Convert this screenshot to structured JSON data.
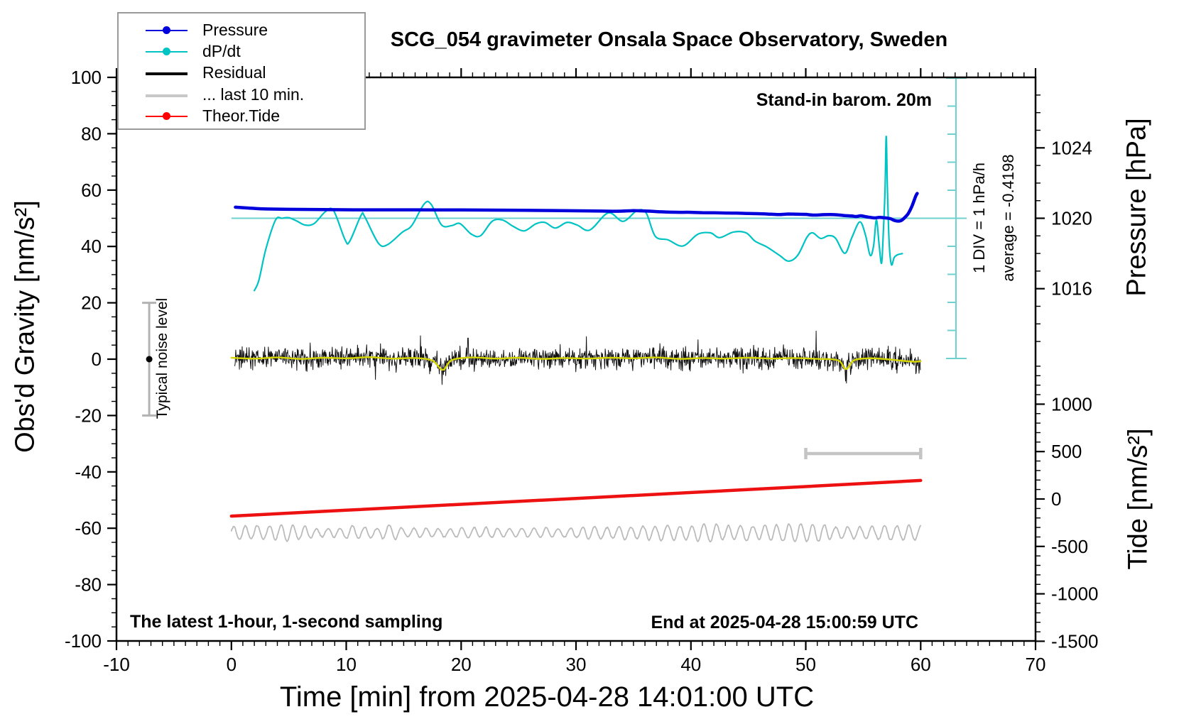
{
  "title": "SCG_054 gravimeter Onsala Space Observatory, Sweden",
  "legend": {
    "items": [
      {
        "label": "Pressure",
        "color": "#0000dd",
        "marker": true,
        "thick": false
      },
      {
        "label": "dP/dt",
        "color": "#00c3c3",
        "marker": true,
        "thick": false
      },
      {
        "label": "Residual",
        "color": "#000000",
        "marker": false,
        "thick": true
      },
      {
        "label": "... last 10 min.",
        "color": "#c8c8c8",
        "marker": false,
        "thick": true
      },
      {
        "label": "Theor.Tide",
        "color": "#ff0000",
        "marker": true,
        "thick": false
      }
    ]
  },
  "annotations": {
    "stand_in": "Stand-in barom. 20m",
    "div_scale": "1 DIV = 1 hPa/h",
    "average": "average = -0.4198",
    "noise_level": "Typical noise level",
    "latest": "The latest 1-hour, 1-second sampling",
    "end_at": "End at 2025-04-28 15:00:59 UTC"
  },
  "chart_data": {
    "type": "line",
    "title": "SCG_054 gravimeter Onsala Space Observatory, Sweden",
    "grid": false,
    "legend_position": "top-left",
    "axes": {
      "x": {
        "label": "Time [min] from 2025-04-28 14:01:00 UTC",
        "range": [
          -10,
          70
        ],
        "major_ticks": [
          -10,
          0,
          10,
          20,
          30,
          40,
          50,
          60,
          70
        ],
        "minor_step": 1
      },
      "y_left": {
        "label": "Obs'd Gravity [nm/s²]",
        "range": [
          -100,
          100
        ],
        "major_ticks": [
          100,
          80,
          60,
          40,
          20,
          0,
          -20,
          -40,
          -60,
          -80,
          -100
        ],
        "minor_step": 5
      },
      "y_right_pressure": {
        "label": "Pressure [hPa]",
        "major_ticks": [
          1024,
          1020,
          1016
        ],
        "minor_step": 1,
        "minor_range": [
          1013,
          1027
        ],
        "anchor": {
          "pressure_hpa": 1020,
          "gravity_axis_value": 50
        }
      },
      "y_right_tide": {
        "label": "Tide [nm/s²]",
        "major_ticks": [
          1000,
          500,
          0,
          -500,
          -1000,
          -1500
        ],
        "minor_step": 100,
        "minor_range": [
          -1500,
          1400
        ]
      }
    },
    "dpdt_scale_bar": {
      "divisions": 10,
      "div_value": "1 hPa/h",
      "center_value_hpa_per_h": 0,
      "t_position_min": 63.1,
      "label": "1 DIV = 1 hPa/h",
      "average_hpa_per_h": -0.4198,
      "color": "#6fd0d0"
    },
    "reference_line": {
      "pressure_hpa": 1020,
      "t_from": 0,
      "t_to": 64,
      "color": "#6fd0d0"
    },
    "series": [
      {
        "name": "Pressure",
        "unit": "hPa",
        "color": "#0000dd",
        "width": 4.5,
        "smooth": true,
        "points": [
          [
            0.35,
            1020.63
          ],
          [
            1.5,
            1020.58
          ],
          [
            3,
            1020.53
          ],
          [
            5,
            1020.51
          ],
          [
            8,
            1020.49
          ],
          [
            12,
            1020.48
          ],
          [
            16,
            1020.48
          ],
          [
            20,
            1020.47
          ],
          [
            24,
            1020.46
          ],
          [
            28,
            1020.44
          ],
          [
            31,
            1020.42
          ],
          [
            33.5,
            1020.4
          ],
          [
            35,
            1020.43
          ],
          [
            36,
            1020.41
          ],
          [
            37,
            1020.38
          ],
          [
            38,
            1020.35
          ],
          [
            39,
            1020.34
          ],
          [
            40,
            1020.34
          ],
          [
            41,
            1020.32
          ],
          [
            42,
            1020.31
          ],
          [
            43,
            1020.3
          ],
          [
            44,
            1020.29
          ],
          [
            45,
            1020.27
          ],
          [
            46,
            1020.26
          ],
          [
            47,
            1020.23
          ],
          [
            47.7,
            1020.21
          ],
          [
            48.5,
            1020.24
          ],
          [
            49.2,
            1020.23
          ],
          [
            50,
            1020.22
          ],
          [
            50.7,
            1020.18
          ],
          [
            51.4,
            1020.2
          ],
          [
            52.1,
            1020.21
          ],
          [
            52.8,
            1020.19
          ],
          [
            53.4,
            1020.15
          ],
          [
            54,
            1020.13
          ],
          [
            54.4,
            1020.1
          ],
          [
            54.8,
            1020.14
          ],
          [
            55.3,
            1020.08
          ],
          [
            55.7,
            1020.04
          ],
          [
            56,
            1020.02
          ],
          [
            56.4,
            1020.05
          ],
          [
            56.8,
            1020.03
          ],
          [
            57.1,
            1020.01
          ],
          [
            57.4,
            1019.97
          ],
          [
            57.7,
            1019.88
          ],
          [
            58,
            1019.84
          ],
          [
            58.3,
            1019.87
          ],
          [
            58.6,
            1020.03
          ],
          [
            58.9,
            1020.25
          ],
          [
            59.2,
            1020.62
          ],
          [
            59.45,
            1021.05
          ],
          [
            59.6,
            1021.3
          ],
          [
            59.7,
            1021.41
          ]
        ]
      },
      {
        "name": "dP/dt",
        "unit": "hPa/h",
        "color": "#00c3c3",
        "width": 2.2,
        "smooth": true,
        "points": [
          [
            2.0,
            -2.58
          ],
          [
            2.4,
            -2.2
          ],
          [
            3.0,
            -1.1
          ],
          [
            3.85,
            -0.06
          ],
          [
            4.4,
            0.0
          ],
          [
            5.0,
            0.02
          ],
          [
            5.7,
            -0.1
          ],
          [
            6.4,
            -0.24
          ],
          [
            7.2,
            -0.19
          ],
          [
            8.2,
            0.24
          ],
          [
            8.9,
            0.27
          ],
          [
            9.9,
            -0.77
          ],
          [
            10.3,
            -0.82
          ],
          [
            11.3,
            0.11
          ],
          [
            11.6,
            0.06
          ],
          [
            12.8,
            -0.89
          ],
          [
            13.6,
            -0.94
          ],
          [
            14.9,
            -0.49
          ],
          [
            15.7,
            -0.26
          ],
          [
            16.8,
            0.52
          ],
          [
            17.4,
            0.49
          ],
          [
            18.3,
            -0.24
          ],
          [
            19.2,
            -0.26
          ],
          [
            19.9,
            -0.19
          ],
          [
            20.9,
            -0.57
          ],
          [
            21.7,
            -0.62
          ],
          [
            22.7,
            -0.11
          ],
          [
            23.6,
            -0.06
          ],
          [
            24.5,
            -0.28
          ],
          [
            25.5,
            -0.45
          ],
          [
            26.5,
            -0.2
          ],
          [
            27.3,
            -0.15
          ],
          [
            28.2,
            -0.35
          ],
          [
            29.2,
            -0.15
          ],
          [
            30.1,
            -0.24
          ],
          [
            31.2,
            -0.42
          ],
          [
            32.8,
            0.19
          ],
          [
            34.1,
            -0.11
          ],
          [
            35.3,
            0.27
          ],
          [
            36.1,
            0.19
          ],
          [
            36.9,
            -0.64
          ],
          [
            38.0,
            -0.77
          ],
          [
            39.3,
            -0.99
          ],
          [
            40.6,
            -0.57
          ],
          [
            41.7,
            -0.52
          ],
          [
            42.5,
            -0.69
          ],
          [
            43.7,
            -0.49
          ],
          [
            44.8,
            -0.52
          ],
          [
            45.6,
            -0.82
          ],
          [
            46.6,
            -1.02
          ],
          [
            47.7,
            -1.32
          ],
          [
            48.5,
            -1.53
          ],
          [
            49.3,
            -1.32
          ],
          [
            50.1,
            -0.68
          ],
          [
            50.6,
            -0.52
          ],
          [
            51.3,
            -0.72
          ],
          [
            52.0,
            -0.62
          ],
          [
            52.6,
            -0.72
          ],
          [
            53.4,
            -1.25
          ],
          [
            54.0,
            -0.7
          ],
          [
            54.7,
            -0.13
          ],
          [
            55.2,
            -0.6
          ],
          [
            55.6,
            -1.32
          ],
          [
            55.9,
            -1.0
          ],
          [
            56.15,
            -0.06
          ],
          [
            56.4,
            -1.0
          ],
          [
            56.6,
            -1.6
          ],
          [
            56.75,
            -0.5
          ],
          [
            56.9,
            1.0
          ],
          [
            57.0,
            2.92
          ],
          [
            57.1,
            1.2
          ],
          [
            57.25,
            -0.8
          ],
          [
            57.45,
            -1.65
          ],
          [
            57.7,
            -1.4
          ],
          [
            58.0,
            -1.3
          ],
          [
            58.4,
            -1.26
          ]
        ]
      },
      {
        "name": "Residual",
        "unit": "nm/s2",
        "color": "#111111",
        "width": 1,
        "t_range": [
          0.3,
          60
        ],
        "mean": 0.3,
        "noise_sigma": 1.9,
        "seed": 42,
        "spikes": [
          [
            18.35,
            -9
          ],
          [
            20.6,
            7.5
          ],
          [
            30.9,
            8
          ],
          [
            53.55,
            -8.5
          ]
        ]
      },
      {
        "name": "Residual smoothed",
        "unit": "nm/s2",
        "color": "#d6d600",
        "width": 2.4,
        "smooth": true,
        "points": [
          [
            0,
            0.5
          ],
          [
            2,
            0.2
          ],
          [
            4,
            0.6
          ],
          [
            6,
            0.1
          ],
          [
            8,
            0.5
          ],
          [
            10,
            0.3
          ],
          [
            12,
            0.7
          ],
          [
            14,
            0.2
          ],
          [
            16,
            0.4
          ],
          [
            17.5,
            -0.5
          ],
          [
            18.4,
            -3.8
          ],
          [
            19.2,
            -0.3
          ],
          [
            21,
            0.6
          ],
          [
            23,
            0.2
          ],
          [
            25,
            0.5
          ],
          [
            27,
            0.1
          ],
          [
            29,
            0.4
          ],
          [
            31,
            0.2
          ],
          [
            33,
            0.5
          ],
          [
            35,
            0.3
          ],
          [
            37,
            0.6
          ],
          [
            39,
            0.1
          ],
          [
            41,
            0.4
          ],
          [
            43,
            0.2
          ],
          [
            45,
            0.5
          ],
          [
            47,
            0.2
          ],
          [
            49,
            0.4
          ],
          [
            51,
            0.1
          ],
          [
            52.8,
            -0.4
          ],
          [
            53.5,
            -3.5
          ],
          [
            54.2,
            -0.4
          ],
          [
            55.5,
            0.3
          ],
          [
            57,
            0.0
          ],
          [
            58.5,
            -0.6
          ],
          [
            59.5,
            -0.9
          ],
          [
            60,
            -0.7
          ]
        ]
      },
      {
        "name": "... last 10 min.",
        "unit": "nm/s2",
        "color": "#bbbbbb",
        "width": 1.8,
        "t_range": [
          0,
          60
        ],
        "center": -61.6,
        "amplitude_range": [
          1.4,
          3.2
        ],
        "period_min": 1.05,
        "seed": 7
      },
      {
        "name": "Theor.Tide",
        "unit": "nm/s2 (tide axis)",
        "color": "#ee1111",
        "width": 4.5,
        "smooth": false,
        "points": [
          [
            0,
            -180
          ],
          [
            10,
            -118
          ],
          [
            20,
            -56
          ],
          [
            30,
            6
          ],
          [
            40,
            68
          ],
          [
            50,
            131
          ],
          [
            60,
            195
          ]
        ]
      }
    ],
    "markers": {
      "noise_bar": {
        "t": -7.15,
        "center_gravity": 0,
        "half_range_gravity": 20,
        "color": "#b3b3b3"
      },
      "last10_bar": {
        "t_from": 50,
        "t_to": 60,
        "gravity": -33.5,
        "color": "#c4c4c4"
      }
    }
  }
}
